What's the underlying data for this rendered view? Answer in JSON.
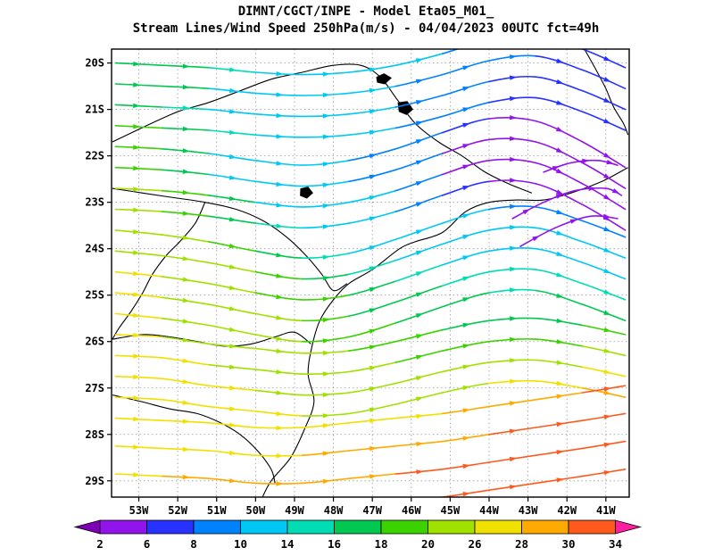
{
  "header": {
    "title_line1": "DIMNT/CGCT/INPE  -  Model Eta05_M01_",
    "title_line2": "Stream Lines/Wind Speed 250hPa(m/s)  -  04/04/2023 00UTC fct=49h"
  },
  "chart_data": {
    "type": "streamline-map",
    "title": "DIMNT/CGCT/INPE - Model Eta05_M01_ | Stream Lines/Wind Speed 250hPa(m/s) - 04/04/2023 00UTC fct=49h",
    "units": "m/s",
    "grid": true,
    "legend_position": "bottom",
    "xlim": [
      53.7,
      40.4
    ],
    "ylim": [
      19.7,
      29.35
    ],
    "lon_ticks": [
      {
        "v": 53,
        "label": "53W"
      },
      {
        "v": 52,
        "label": "52W"
      },
      {
        "v": 51,
        "label": "51W"
      },
      {
        "v": 50,
        "label": "50W"
      },
      {
        "v": 49,
        "label": "49W"
      },
      {
        "v": 48,
        "label": "48W"
      },
      {
        "v": 47,
        "label": "47W"
      },
      {
        "v": 46,
        "label": "46W"
      },
      {
        "v": 45,
        "label": "45W"
      },
      {
        "v": 44,
        "label": "44W"
      },
      {
        "v": 43,
        "label": "43W"
      },
      {
        "v": 42,
        "label": "42W"
      },
      {
        "v": 41,
        "label": "41W"
      }
    ],
    "lat_ticks": [
      {
        "v": 20,
        "label": "20S"
      },
      {
        "v": 21,
        "label": "21S"
      },
      {
        "v": 22,
        "label": "22S"
      },
      {
        "v": 23,
        "label": "23S"
      },
      {
        "v": 24,
        "label": "24S"
      },
      {
        "v": 25,
        "label": "25S"
      },
      {
        "v": 26,
        "label": "26S"
      },
      {
        "v": 27,
        "label": "27S"
      },
      {
        "v": 28,
        "label": "28S"
      },
      {
        "v": 29,
        "label": "29S"
      }
    ],
    "colorbar": {
      "levels": [
        2,
        6,
        8,
        10,
        14,
        16,
        18,
        20,
        26,
        28,
        30,
        34
      ],
      "colors": [
        "#7d00b4",
        "#9114eb",
        "#2832ff",
        "#0082ff",
        "#00c8f5",
        "#00dcb4",
        "#00c850",
        "#3cd200",
        "#a0e100",
        "#f0e100",
        "#ffaa00",
        "#ff5a1e",
        "#ff1ea0"
      ],
      "units": "m/s"
    },
    "stream_lons": [
      53.6,
      52.4,
      51.2,
      50.0,
      48.8,
      47.6,
      46.4,
      45.2,
      44.0,
      42.8,
      41.6,
      40.5
    ],
    "streamlines": [
      {
        "lats": [
          20.0,
          20.05,
          20.1,
          20.2,
          20.25,
          20.2,
          20.05,
          19.8,
          19.5,
          19.4,
          19.7,
          20.1
        ],
        "spds": [
          17,
          17,
          15,
          15,
          12,
          12,
          12,
          9,
          9,
          9,
          7,
          7
        ]
      },
      {
        "lats": [
          20.45,
          20.5,
          20.55,
          20.65,
          20.7,
          20.65,
          20.5,
          20.25,
          19.95,
          19.85,
          20.15,
          20.55
        ],
        "spds": [
          17,
          17,
          15,
          12,
          12,
          12,
          9,
          9,
          9,
          7,
          7,
          7
        ]
      },
      {
        "lats": [
          20.9,
          20.95,
          21.0,
          21.1,
          21.15,
          21.1,
          20.95,
          20.7,
          20.4,
          20.3,
          20.6,
          21.0
        ],
        "spds": [
          17,
          15,
          15,
          12,
          12,
          12,
          9,
          9,
          7,
          7,
          7,
          7
        ]
      },
      {
        "lats": [
          21.35,
          21.4,
          21.45,
          21.55,
          21.6,
          21.55,
          21.4,
          21.15,
          20.85,
          20.75,
          21.05,
          21.45
        ],
        "spds": [
          19,
          17,
          15,
          15,
          12,
          12,
          9,
          9,
          7,
          7,
          7,
          7
        ]
      },
      {
        "lats": [
          21.8,
          21.85,
          21.95,
          22.1,
          22.2,
          22.1,
          21.85,
          21.5,
          21.2,
          21.25,
          21.7,
          22.25
        ],
        "spds": [
          19,
          17,
          15,
          12,
          12,
          9,
          9,
          7,
          7,
          4,
          4,
          4
        ]
      },
      {
        "lats": [
          22.25,
          22.3,
          22.4,
          22.55,
          22.65,
          22.55,
          22.3,
          21.95,
          21.65,
          21.7,
          22.15,
          22.7
        ],
        "spds": [
          19,
          17,
          15,
          12,
          12,
          9,
          9,
          7,
          4,
          4,
          4,
          4
        ]
      },
      {
        "lats": [
          22.7,
          22.75,
          22.85,
          23.0,
          23.1,
          23.0,
          22.75,
          22.4,
          22.1,
          22.15,
          22.6,
          23.15
        ],
        "spds": [
          22,
          19,
          17,
          15,
          12,
          12,
          9,
          7,
          4,
          4,
          4,
          4
        ]
      },
      {
        "lats": [
          23.15,
          23.2,
          23.3,
          23.45,
          23.55,
          23.45,
          23.2,
          22.85,
          22.55,
          22.6,
          23.05,
          23.6
        ],
        "spds": [
          22,
          19,
          17,
          15,
          15,
          12,
          9,
          7,
          7,
          4,
          4,
          4
        ]
      },
      {
        "lats": [
          23.6,
          23.7,
          23.85,
          24.05,
          24.2,
          24.1,
          23.8,
          23.45,
          23.15,
          23.1,
          23.4,
          23.75
        ],
        "spds": [
          27,
          22,
          19,
          17,
          15,
          15,
          12,
          12,
          9,
          9,
          9,
          9
        ]
      },
      {
        "lats": [
          24.05,
          24.15,
          24.3,
          24.5,
          24.65,
          24.55,
          24.25,
          23.9,
          23.6,
          23.55,
          23.85,
          24.2
        ],
        "spds": [
          27,
          22,
          22,
          19,
          17,
          15,
          15,
          12,
          12,
          12,
          12,
          12
        ]
      },
      {
        "lats": [
          24.5,
          24.6,
          24.75,
          24.95,
          25.1,
          25.0,
          24.7,
          24.35,
          24.05,
          24.0,
          24.3,
          24.65
        ],
        "spds": [
          27,
          27,
          22,
          19,
          19,
          17,
          15,
          15,
          12,
          12,
          12,
          15
        ]
      },
      {
        "lats": [
          24.95,
          25.05,
          25.2,
          25.4,
          25.55,
          25.45,
          25.15,
          24.8,
          24.5,
          24.45,
          24.75,
          25.1
        ],
        "spds": [
          27,
          27,
          22,
          22,
          19,
          17,
          17,
          15,
          15,
          15,
          15,
          15
        ]
      },
      {
        "lats": [
          25.4,
          25.5,
          25.65,
          25.85,
          26.0,
          25.9,
          25.6,
          25.25,
          24.95,
          24.9,
          25.2,
          25.55
        ],
        "spds": [
          27,
          27,
          22,
          22,
          19,
          19,
          17,
          17,
          15,
          15,
          17,
          17
        ]
      },
      {
        "lats": [
          25.85,
          25.9,
          26.05,
          26.15,
          26.25,
          26.2,
          26.0,
          25.75,
          25.55,
          25.5,
          25.65,
          25.85
        ],
        "spds": [
          27,
          27,
          22,
          22,
          22,
          19,
          19,
          17,
          17,
          17,
          17,
          19
        ]
      },
      {
        "lats": [
          26.3,
          26.35,
          26.5,
          26.6,
          26.7,
          26.65,
          26.45,
          26.2,
          26.0,
          25.95,
          26.1,
          26.3
        ],
        "spds": [
          27,
          27,
          27,
          22,
          22,
          22,
          19,
          19,
          19,
          19,
          19,
          22
        ]
      },
      {
        "lats": [
          26.75,
          26.8,
          26.95,
          27.05,
          27.15,
          27.1,
          26.9,
          26.65,
          26.45,
          26.4,
          26.55,
          26.75
        ],
        "spds": [
          27,
          27,
          27,
          27,
          22,
          22,
          22,
          22,
          22,
          22,
          27,
          27
        ]
      },
      {
        "lats": [
          27.2,
          27.25,
          27.4,
          27.5,
          27.6,
          27.55,
          27.35,
          27.1,
          26.9,
          26.85,
          27.0,
          27.2
        ],
        "spds": [
          27,
          27,
          27,
          27,
          27,
          22,
          22,
          22,
          27,
          27,
          27,
          29
        ]
      },
      {
        "lats": [
          27.65,
          27.7,
          27.75,
          27.85,
          27.85,
          27.75,
          27.65,
          27.55,
          27.4,
          27.25,
          27.1,
          26.95
        ],
        "spds": [
          27,
          27,
          27,
          27,
          27,
          27,
          27,
          27,
          29,
          29,
          29,
          32
        ]
      },
      {
        "lats": [
          28.25,
          28.3,
          28.35,
          28.45,
          28.45,
          28.35,
          28.25,
          28.15,
          28.0,
          27.85,
          27.7,
          27.55
        ],
        "spds": [
          27,
          27,
          27,
          27,
          27,
          29,
          29,
          29,
          29,
          32,
          32,
          32
        ]
      },
      {
        "lats": [
          28.85,
          28.9,
          28.95,
          29.05,
          29.05,
          28.95,
          28.85,
          28.75,
          28.6,
          28.45,
          28.3,
          28.15
        ],
        "spds": [
          27,
          27,
          29,
          29,
          29,
          29,
          29,
          32,
          32,
          32,
          32,
          32
        ]
      },
      {
        "lats": [
          29.45,
          29.5,
          29.55,
          29.65,
          29.65,
          29.55,
          29.45,
          29.35,
          29.2,
          29.05,
          28.9,
          28.75
        ],
        "spds": [
          29,
          29,
          29,
          29,
          29,
          29,
          32,
          32,
          32,
          32,
          32,
          32
        ]
      },
      {
        "lons": [
          43.4,
          42.6,
          41.8,
          41.0,
          40.6
        ],
        "lats": [
          23.35,
          23.0,
          22.75,
          22.7,
          22.85
        ],
        "spds": [
          4,
          4,
          4,
          4,
          4
        ]
      },
      {
        "lons": [
          43.2,
          42.3,
          41.4,
          40.7
        ],
        "lats": [
          23.95,
          23.55,
          23.3,
          23.35
        ],
        "spds": [
          4,
          4,
          4,
          4
        ]
      },
      {
        "lons": [
          42.6,
          41.9,
          41.2,
          40.7
        ],
        "lats": [
          22.35,
          22.15,
          22.1,
          22.2
        ],
        "spds": [
          4,
          4,
          4,
          4
        ]
      }
    ],
    "map_outlines": [
      [
        [
          41.55,
          19.7
        ],
        [
          41.25,
          20.15
        ],
        [
          41.0,
          20.55
        ],
        [
          40.8,
          20.95
        ],
        [
          40.55,
          21.3
        ],
        [
          40.43,
          21.55
        ]
      ],
      [
        [
          40.43,
          22.25
        ],
        [
          41.1,
          22.55
        ],
        [
          41.9,
          22.8
        ],
        [
          42.6,
          22.95
        ],
        [
          43.3,
          22.95
        ],
        [
          44.0,
          23.0
        ],
        [
          44.6,
          23.2
        ],
        [
          45.2,
          23.65
        ],
        [
          45.9,
          23.85
        ],
        [
          46.3,
          24.0
        ],
        [
          47.0,
          24.45
        ],
        [
          47.6,
          24.75
        ],
        [
          48.0,
          25.1
        ],
        [
          48.35,
          25.55
        ],
        [
          48.55,
          26.1
        ],
        [
          48.65,
          26.7
        ],
        [
          48.5,
          27.3
        ],
        [
          48.75,
          27.9
        ],
        [
          49.1,
          28.5
        ],
        [
          49.6,
          29.0
        ],
        [
          49.85,
          29.4
        ]
      ],
      [
        [
          53.68,
          21.7
        ],
        [
          52.8,
          21.35
        ],
        [
          52.0,
          21.05
        ],
        [
          51.2,
          20.85
        ],
        [
          50.4,
          20.6
        ],
        [
          49.6,
          20.35
        ],
        [
          48.8,
          20.2
        ],
        [
          48.0,
          20.05
        ],
        [
          47.3,
          20.05
        ],
        [
          46.8,
          20.3
        ],
        [
          46.35,
          20.8
        ],
        [
          45.9,
          21.3
        ],
        [
          45.3,
          21.7
        ],
        [
          44.7,
          22.0
        ],
        [
          44.1,
          22.35
        ],
        [
          43.5,
          22.6
        ],
        [
          42.9,
          22.8
        ]
      ],
      [
        [
          53.68,
          22.7
        ],
        [
          52.9,
          22.8
        ],
        [
          52.1,
          22.9
        ],
        [
          51.3,
          23.0
        ],
        [
          50.5,
          23.15
        ],
        [
          49.8,
          23.4
        ],
        [
          49.2,
          23.75
        ],
        [
          48.7,
          24.15
        ],
        [
          48.3,
          24.55
        ],
        [
          48.0,
          24.9
        ],
        [
          47.65,
          24.75
        ]
      ],
      [
        [
          53.68,
          25.95
        ],
        [
          52.9,
          25.85
        ],
        [
          52.2,
          25.9
        ],
        [
          51.5,
          26.0
        ],
        [
          50.8,
          26.1
        ],
        [
          50.1,
          26.05
        ],
        [
          49.5,
          25.9
        ],
        [
          49.0,
          25.8
        ],
        [
          48.58,
          26.05
        ]
      ],
      [
        [
          53.68,
          27.15
        ],
        [
          52.9,
          27.3
        ],
        [
          52.2,
          27.45
        ],
        [
          51.5,
          27.55
        ],
        [
          50.9,
          27.75
        ],
        [
          50.4,
          28.0
        ],
        [
          49.95,
          28.35
        ],
        [
          49.6,
          28.75
        ],
        [
          49.5,
          29.05
        ]
      ],
      [
        [
          51.3,
          23.0
        ],
        [
          51.55,
          23.45
        ],
        [
          51.95,
          23.85
        ],
        [
          52.3,
          24.15
        ],
        [
          52.65,
          24.55
        ],
        [
          52.9,
          24.95
        ],
        [
          53.2,
          25.35
        ],
        [
          53.5,
          25.7
        ],
        [
          53.68,
          25.95
        ]
      ]
    ],
    "lakes": [
      [
        [
          46.9,
          20.3
        ],
        [
          46.7,
          20.22
        ],
        [
          46.5,
          20.32
        ],
        [
          46.68,
          20.46
        ],
        [
          46.88,
          20.42
        ]
      ],
      [
        [
          46.35,
          20.85
        ],
        [
          46.1,
          20.82
        ],
        [
          45.95,
          21.0
        ],
        [
          46.12,
          21.12
        ],
        [
          46.32,
          21.05
        ]
      ],
      [
        [
          48.85,
          22.7
        ],
        [
          48.65,
          22.66
        ],
        [
          48.52,
          22.8
        ],
        [
          48.68,
          22.92
        ],
        [
          48.86,
          22.86
        ]
      ]
    ]
  }
}
